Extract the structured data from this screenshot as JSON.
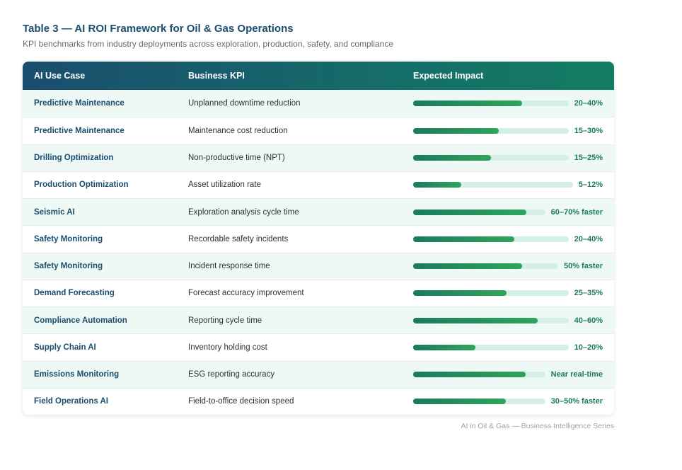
{
  "title": "Table 3 — AI ROI Framework for Oil & Gas Operations",
  "subtitle": "KPI benchmarks from industry deployments across exploration, production, safety, and compliance",
  "headers": [
    "AI Use Case",
    "Business KPI",
    "Expected Impact"
  ],
  "colors": {
    "header_start": "#1a4d6e",
    "header_end": "#137d63",
    "accent": "#1b7a5e",
    "bar_track": "#d3efe6",
    "row_alt": "#eef8f4"
  },
  "rows": [
    {
      "use_case": "Predictive Maintenance",
      "kpi": "Unplanned downtime reduction",
      "impact": "20–40%",
      "level": 0.7
    },
    {
      "use_case": "Predictive Maintenance",
      "kpi": "Maintenance cost reduction",
      "impact": "15–30%",
      "level": 0.55
    },
    {
      "use_case": "Drilling Optimization",
      "kpi": "Non-productive time (NPT)",
      "impact": "15–25%",
      "level": 0.5
    },
    {
      "use_case": "Production Optimization",
      "kpi": "Asset utilization rate",
      "impact": "5–12%",
      "level": 0.3
    },
    {
      "use_case": "Seismic AI",
      "kpi": "Exploration analysis cycle time",
      "impact": "60–70% faster",
      "level": 0.86
    },
    {
      "use_case": "Safety Monitoring",
      "kpi": "Recordable safety incidents",
      "impact": "20–40%",
      "level": 0.65
    },
    {
      "use_case": "Safety Monitoring",
      "kpi": "Incident response time",
      "impact": "50% faster",
      "level": 0.75
    },
    {
      "use_case": "Demand Forecasting",
      "kpi": "Forecast accuracy improvement",
      "impact": "25–35%",
      "level": 0.6
    },
    {
      "use_case": "Compliance Automation",
      "kpi": "Reporting cycle time",
      "impact": "40–60%",
      "level": 0.8
    },
    {
      "use_case": "Supply Chain AI",
      "kpi": "Inventory holding cost",
      "impact": "10–20%",
      "level": 0.4
    },
    {
      "use_case": "Emissions Monitoring",
      "kpi": "ESG reporting accuracy",
      "impact": "Near real-time",
      "level": 0.85
    },
    {
      "use_case": "Field Operations AI",
      "kpi": "Field-to-office decision speed",
      "impact": "30–50% faster",
      "level": 0.7
    }
  ],
  "footer": "AI in Oil & Gas — Business Intelligence Series"
}
